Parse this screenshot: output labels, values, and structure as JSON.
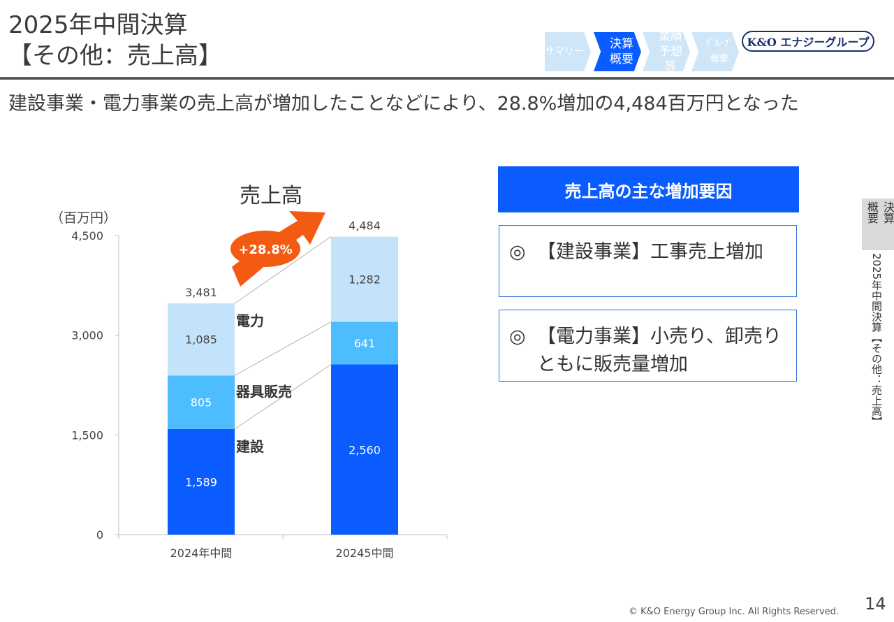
{
  "header": {
    "title_line1": "2025年中間決算",
    "title_line2": "【その他：売上高】",
    "headline": "建設事業・電力事業の売上高が増加したことなどにより、28.8%増加の4,484百万円となった"
  },
  "nav": {
    "items": [
      {
        "label": "サマリー",
        "state": "inactive"
      },
      {
        "label_line1": "決算",
        "label_line2": "概要",
        "state": "active"
      },
      {
        "label_line1": "業績",
        "label_line2": "予想等",
        "state": "inactive"
      },
      {
        "label_line1": "ｸﾞﾙｰﾌﾟ",
        "label_line2": "概要",
        "state": "inactive"
      }
    ],
    "logo": "K&O エナジーグループ"
  },
  "side_tab": {
    "label_a": "決算",
    "label_b": "概要",
    "vertical_text": "2025年中間決算【その他：売上高】"
  },
  "reasons": {
    "header": "売上高の主な増加要因",
    "items": [
      {
        "mark": "◎",
        "text": "【建設事業】工事売上増加"
      },
      {
        "mark": "◎",
        "text": "【電力事業】小売り、卸売りともに販売量増加"
      }
    ]
  },
  "chart_data": {
    "type": "bar",
    "stacked": true,
    "title": "売上高",
    "unit_label": "（百万円）",
    "categories": [
      "2024年中間",
      "20245中間"
    ],
    "series": [
      {
        "name": "建設",
        "values": [
          1589,
          2560
        ],
        "color": "#0b5cff"
      },
      {
        "name": "器具販売",
        "values": [
          805,
          641
        ],
        "color": "#4dbdff"
      },
      {
        "name": "電力",
        "values": [
          1085,
          1282
        ],
        "color": "#c3e3fb"
      }
    ],
    "totals": [
      3481,
      4484
    ],
    "ylim": [
      0,
      4500
    ],
    "yticks": [
      0,
      1500,
      3000,
      4500
    ],
    "ytick_labels": [
      "0",
      "1,500",
      "3,000",
      "4,500"
    ],
    "growth_label": "+28.8%",
    "arrow_color": "#f35a12"
  },
  "footer": {
    "copyright": "© K&O Energy Group Inc. All Rights Reserved.",
    "page": "14"
  }
}
